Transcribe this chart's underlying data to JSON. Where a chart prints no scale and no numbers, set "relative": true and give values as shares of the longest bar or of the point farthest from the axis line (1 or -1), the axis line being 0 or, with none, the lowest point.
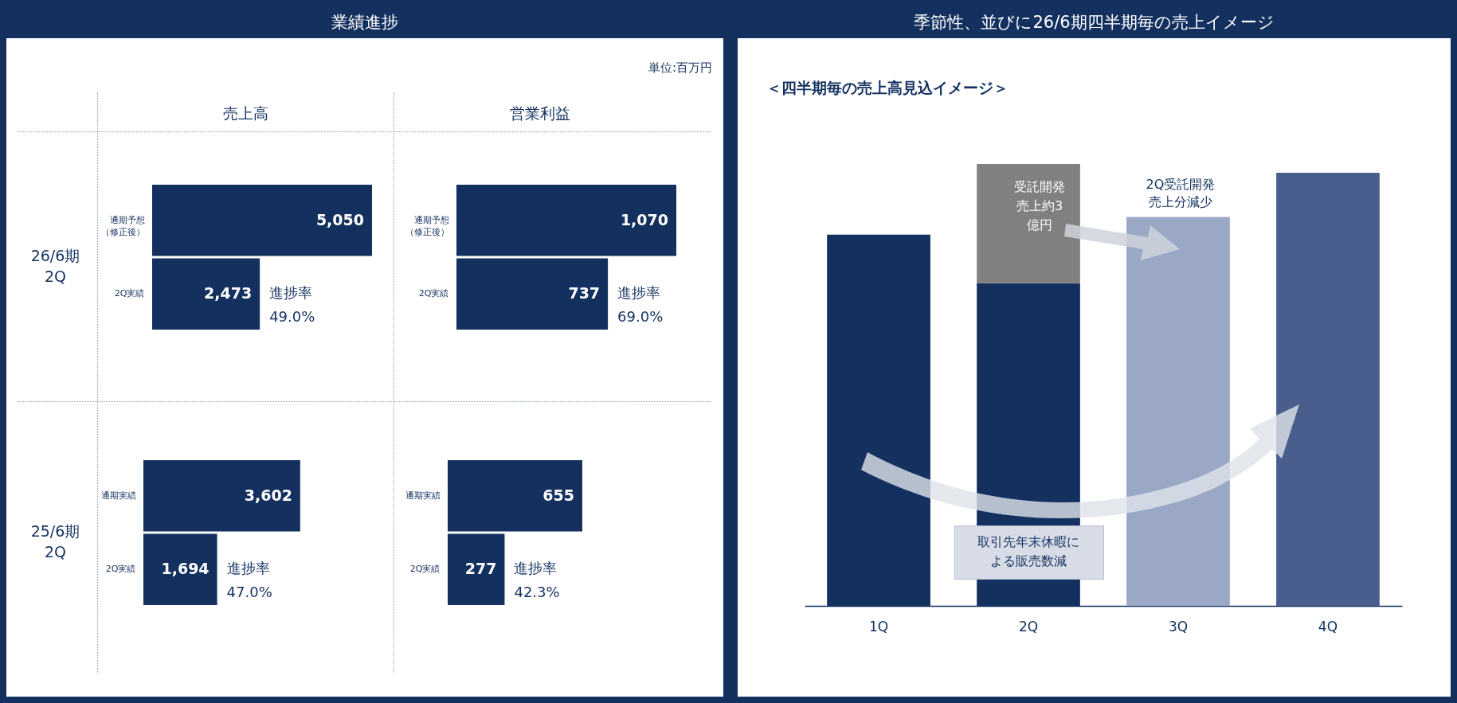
{
  "chart_data": [
    {
      "type": "other",
      "title": "業績進捗",
      "annotations": [
        "単位:百万円",
        "売上高",
        "営業利益",
        "26/6期\n2Q",
        "25/6期\n2Q"
      ]
    },
    {
      "type": "bar",
      "orientation": "horizontal",
      "categories": [
        "通期予想（修正後）",
        "2Q実績"
      ],
      "values": [
        5050,
        2473
      ],
      "value_labels": [
        "5,050",
        "2,473"
      ],
      "color": "#13305f",
      "annotations": [
        {
          "text": "進捗率\n49.0%",
          "x": 2473,
          "y": "2Q実績"
        }
      ]
    },
    {
      "type": "bar",
      "orientation": "horizontal",
      "categories": [
        "通期予想（修正後）",
        "2Q実績"
      ],
      "values": [
        1070,
        737
      ],
      "value_labels": [
        "1,070",
        "737"
      ],
      "color": "#13305f",
      "annotations": [
        {
          "text": "進捗率\n69.0%",
          "x": 737,
          "y": "2Q実績"
        }
      ]
    },
    {
      "type": "bar",
      "orientation": "horizontal",
      "categories": [
        "通期実績",
        "2Q実績"
      ],
      "values": [
        3602,
        1694
      ],
      "value_labels": [
        "3,602",
        "1,694"
      ],
      "color": "#13305f",
      "annotations": [
        {
          "text": "進捗率\n47.0%",
          "x": 1694,
          "y": "2Q実績"
        }
      ]
    },
    {
      "type": "bar",
      "orientation": "horizontal",
      "categories": [
        "通期実績",
        "2Q実績"
      ],
      "values": [
        655,
        277
      ],
      "value_labels": [
        "655",
        "277"
      ],
      "color": "#13305f",
      "annotations": [
        {
          "text": "進捗率\n42.3%",
          "x": 277,
          "y": "2Q実績"
        }
      ]
    },
    {
      "type": "bar",
      "title": "季節性、並びに26/6期四半期毎の売上イメージ",
      "subtitle": "＜四半期毎の売上高見込イメージ＞",
      "relative": true,
      "stacked": true,
      "categories": [
        "1Q",
        "2Q",
        "3Q",
        "4Q"
      ],
      "series": [
        {
          "color": "#13305f",
          "values": [
            0.84,
            0.73,
            null,
            null
          ]
        },
        {
          "color": "#808080",
          "values": [
            null,
            0.27,
            null,
            null
          ]
        },
        {
          "color": "#9aa8c6",
          "values": [
            null,
            null,
            0.88,
            null
          ]
        },
        {
          "color": "#4a5e8e",
          "values": [
            null,
            null,
            null,
            0.98
          ]
        }
      ],
      "annotations": [
        "受託開発売上約3億円",
        "2Q受託開発売上分減少",
        "取引先年末休暇による販売数減"
      ]
    }
  ]
}
